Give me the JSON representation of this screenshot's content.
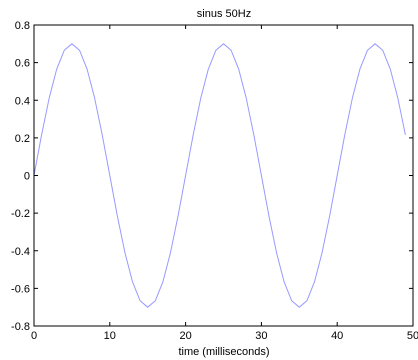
{
  "chart_data": {
    "type": "line",
    "title": "sinus 50Hz",
    "xlabel": "time (milliseconds)",
    "ylabel": "",
    "xlim": [
      0,
      50
    ],
    "ylim": [
      -0.8,
      0.8
    ],
    "xticks": [
      "0",
      "10",
      "20",
      "30",
      "40",
      "50"
    ],
    "yticks": [
      "-0.8",
      "-0.6",
      "-0.4",
      "-0.2",
      "0",
      "0.2",
      "0.4",
      "0.6",
      "0.8"
    ],
    "grid": false,
    "legend": "none",
    "line_color": "#9999ff",
    "series": [
      {
        "x": [
          0,
          1,
          2,
          3,
          4,
          5,
          6,
          7,
          8,
          9,
          10,
          11,
          12,
          13,
          14,
          15,
          16,
          17,
          18,
          19,
          20,
          21,
          22,
          23,
          24,
          25,
          26,
          27,
          28,
          29,
          30,
          31,
          32,
          33,
          34,
          35,
          36,
          37,
          38,
          39,
          40,
          41,
          42,
          43,
          44,
          45,
          46,
          47,
          48,
          49
        ],
        "values": [
          0,
          0.216,
          0.411,
          0.566,
          0.666,
          0.7,
          0.666,
          0.566,
          0.411,
          0.216,
          0,
          -0.216,
          -0.411,
          -0.566,
          -0.666,
          -0.7,
          -0.666,
          -0.566,
          -0.411,
          -0.216,
          0,
          0.216,
          0.411,
          0.566,
          0.666,
          0.7,
          0.666,
          0.566,
          0.411,
          0.216,
          0,
          -0.216,
          -0.411,
          -0.566,
          -0.666,
          -0.7,
          -0.666,
          -0.566,
          -0.411,
          -0.216,
          0,
          0.216,
          0.411,
          0.566,
          0.666,
          0.7,
          0.666,
          0.566,
          0.411,
          0.216
        ]
      }
    ]
  }
}
